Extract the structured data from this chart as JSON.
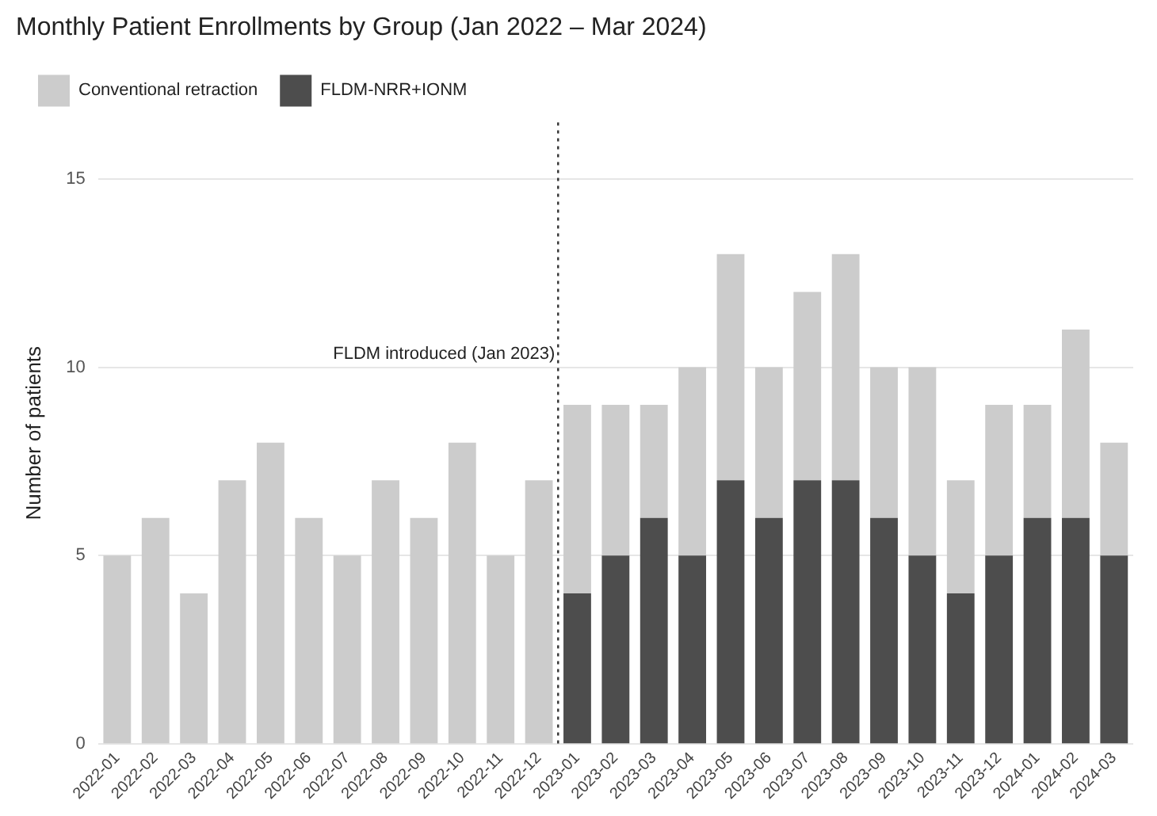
{
  "chart_data": {
    "type": "bar",
    "title": "Monthly Patient Enrollments by Group (Jan 2022 – Mar 2024)",
    "ylabel": "Number of patients",
    "categories": [
      "2022-01",
      "2022-02",
      "2022-03",
      "2022-04",
      "2022-05",
      "2022-06",
      "2022-07",
      "2022-08",
      "2022-09",
      "2022-10",
      "2022-11",
      "2022-12",
      "2023-01",
      "2023-02",
      "2023-03",
      "2023-04",
      "2023-05",
      "2023-06",
      "2023-07",
      "2023-08",
      "2023-09",
      "2023-10",
      "2023-11",
      "2023-12",
      "2024-01",
      "2024-02",
      "2024-03"
    ],
    "stacked": true,
    "series": [
      {
        "name": "FLDM-NRR+IONM",
        "color": "#4d4d4d",
        "values": [
          0,
          0,
          0,
          0,
          0,
          0,
          0,
          0,
          0,
          0,
          0,
          0,
          4,
          5,
          6,
          5,
          7,
          6,
          7,
          7,
          6,
          5,
          4,
          5,
          6,
          6,
          5
        ]
      },
      {
        "name": "Conventional retraction",
        "color": "#cccccc",
        "values": [
          5,
          6,
          4,
          7,
          8,
          6,
          5,
          7,
          6,
          8,
          5,
          7,
          5,
          4,
          3,
          5,
          6,
          4,
          5,
          6,
          4,
          5,
          3,
          4,
          3,
          5,
          3
        ]
      }
    ],
    "ylim": [
      0,
      16.5
    ],
    "yticks": [
      0,
      5,
      10,
      15
    ],
    "grid": "y",
    "legend": "top left",
    "ref_lines": [
      {
        "axis": "x",
        "value": "2023-01",
        "label": "FLDM introduced (Jan 2023)",
        "line_style": "dotted",
        "color": "#333333"
      }
    ]
  }
}
